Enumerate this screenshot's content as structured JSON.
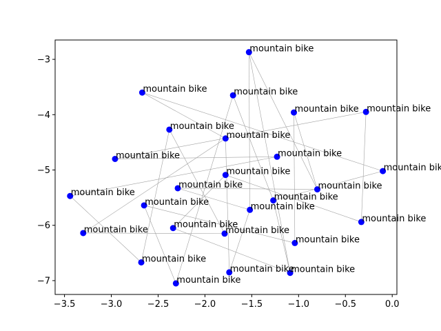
{
  "chart_data": {
    "type": "scatter",
    "title": "",
    "xlabel": "",
    "ylabel": "",
    "xlim": [
      -3.6,
      0.05
    ],
    "ylim": [
      -7.25,
      -2.65
    ],
    "xticks": [
      -3.5,
      -3.0,
      -2.5,
      -2.0,
      -1.5,
      -1.0,
      -0.5,
      0.0
    ],
    "xtick_labels": [
      "−3.5",
      "−3.0",
      "−2.5",
      "−2.0",
      "−1.5",
      "−1.0",
      "−0.5",
      "0.0"
    ],
    "yticks": [
      -7,
      -6,
      -5,
      -4,
      -3
    ],
    "ytick_labels": [
      "−7",
      "−6",
      "−5",
      "−4",
      "−3"
    ],
    "grid": false,
    "point_color": "#0000ff",
    "edge_color": "#a0a0a0",
    "points": [
      {
        "x": -1.53,
        "y": -2.87,
        "label": "mountain bike"
      },
      {
        "x": -2.67,
        "y": -3.6,
        "label": "mountain bike"
      },
      {
        "x": -1.7,
        "y": -3.65,
        "label": "mountain bike"
      },
      {
        "x": -1.05,
        "y": -3.96,
        "label": "mountain bike"
      },
      {
        "x": -0.28,
        "y": -3.95,
        "label": "mountain bike"
      },
      {
        "x": -2.38,
        "y": -4.27,
        "label": "mountain bike"
      },
      {
        "x": -1.78,
        "y": -4.43,
        "label": "mountain bike"
      },
      {
        "x": -2.96,
        "y": -4.8,
        "label": "mountain bike"
      },
      {
        "x": -1.23,
        "y": -4.76,
        "label": "mountain bike"
      },
      {
        "x": -0.1,
        "y": -5.02,
        "label": "mountain bike"
      },
      {
        "x": -1.78,
        "y": -5.09,
        "label": "mountain bike"
      },
      {
        "x": -3.44,
        "y": -5.47,
        "label": "mountain bike"
      },
      {
        "x": -2.29,
        "y": -5.33,
        "label": "mountain bike"
      },
      {
        "x": -0.8,
        "y": -5.35,
        "label": "mountain bike"
      },
      {
        "x": -1.27,
        "y": -5.55,
        "label": "mountain bike"
      },
      {
        "x": -2.65,
        "y": -5.64,
        "label": "mountain bike"
      },
      {
        "x": -1.52,
        "y": -5.72,
        "label": "mountain bike"
      },
      {
        "x": -0.33,
        "y": -5.94,
        "label": "mountain bike"
      },
      {
        "x": -3.3,
        "y": -6.14,
        "label": "mountain bike"
      },
      {
        "x": -2.34,
        "y": -6.05,
        "label": "mountain bike"
      },
      {
        "x": -1.79,
        "y": -6.15,
        "label": "mountain bike"
      },
      {
        "x": -1.04,
        "y": -6.32,
        "label": "mountain bike"
      },
      {
        "x": -2.68,
        "y": -6.67,
        "label": "mountain bike"
      },
      {
        "x": -1.74,
        "y": -6.85,
        "label": "mountain bike"
      },
      {
        "x": -1.09,
        "y": -6.86,
        "label": "mountain bike"
      },
      {
        "x": -2.31,
        "y": -7.05,
        "label": "mountain bike"
      }
    ],
    "edges": [
      [
        0,
        16
      ],
      [
        0,
        24
      ],
      [
        1,
        6
      ],
      [
        1,
        9
      ],
      [
        2,
        25
      ],
      [
        2,
        14
      ],
      [
        3,
        21
      ],
      [
        3,
        13
      ],
      [
        4,
        7
      ],
      [
        4,
        17
      ],
      [
        5,
        22
      ],
      [
        5,
        20
      ],
      [
        6,
        23
      ],
      [
        6,
        18
      ],
      [
        7,
        8
      ],
      [
        8,
        11
      ],
      [
        9,
        14
      ],
      [
        10,
        19
      ],
      [
        10,
        17
      ],
      [
        12,
        13
      ],
      [
        12,
        16
      ],
      [
        15,
        21
      ],
      [
        15,
        25
      ],
      [
        16,
        23
      ],
      [
        18,
        20
      ],
      [
        19,
        24
      ],
      [
        22,
        11
      ],
      [
        24,
        14
      ],
      [
        0,
        13
      ]
    ]
  }
}
